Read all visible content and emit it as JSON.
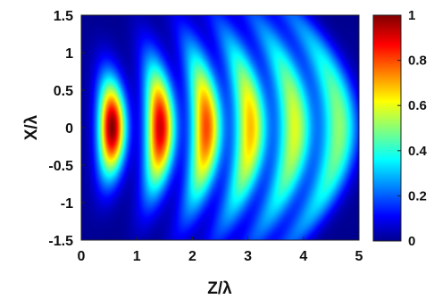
{
  "chart_data": {
    "type": "heatmap",
    "title": "",
    "xlabel": "Z/λ",
    "ylabel": "X/λ",
    "xlim": [
      0,
      5
    ],
    "ylim": [
      -1.5,
      1.5
    ],
    "x_ticks": [
      "0",
      "1",
      "2",
      "3",
      "4",
      "5"
    ],
    "y_ticks": [
      "1.5",
      "1",
      "0.5",
      "0",
      "-0.5",
      "-1",
      "-1.5"
    ],
    "colorbar": {
      "range": [
        0,
        1
      ],
      "ticks": [
        "1",
        "0.8",
        "0.6",
        "0.4",
        "0.2",
        "0"
      ],
      "colormap": "jet"
    },
    "peaks": [
      {
        "z": 0.55,
        "x": 0,
        "intensity": 1.0
      },
      {
        "z": 1.42,
        "x": 0,
        "intensity": 0.92
      },
      {
        "z": 2.25,
        "x": 0,
        "intensity": 0.8
      },
      {
        "z": 3.05,
        "x": 0,
        "intensity": 0.68
      },
      {
        "z": 3.85,
        "x": 0,
        "intensity": 0.58
      },
      {
        "z": 4.65,
        "x": 0,
        "intensity": 0.5
      }
    ],
    "grid": false
  }
}
